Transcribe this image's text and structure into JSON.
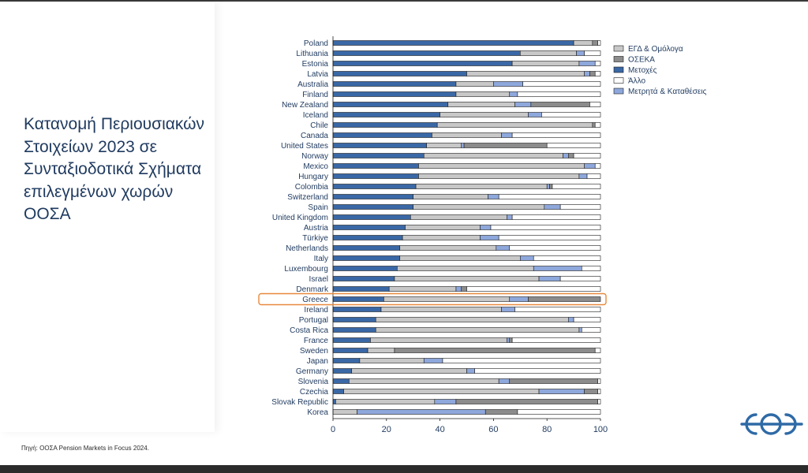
{
  "slide": {
    "title": "Κατανομή Περιουσιακών Στοιχείων 2023 σε Συνταξιοδοτικά Σχήματα επιλεγμένων χωρών ΟΟΣΑ",
    "source": "Πηγή: ΟΟΣΑ Pension Markets in Focus 2024."
  },
  "logo": {
    "icon": "eoe-logo",
    "color": "#2e6aa6"
  },
  "highlight": {
    "category": "Greece",
    "color": "#e8893c"
  },
  "chart_data": {
    "type": "bar",
    "orientation": "horizontal",
    "stacked": true,
    "xlim": [
      0,
      100
    ],
    "xticks": [
      0,
      20,
      40,
      60,
      80,
      100
    ],
    "legend_position": "right",
    "categories": [
      "Poland",
      "Lithuania",
      "Estonia",
      "Latvia",
      "Australia",
      "Finland",
      "New Zealand",
      "Iceland",
      "Chile",
      "Canada",
      "United States",
      "Norway",
      "Mexico",
      "Hungary",
      "Colombia",
      "Switzerland",
      "Spain",
      "United Kingdom",
      "Austria",
      "Türkiye",
      "Netherlands",
      "Italy",
      "Luxembourg",
      "Israel",
      "Denmark",
      "Greece",
      "Ireland",
      "Portugal",
      "Costa Rica",
      "France",
      "Sweden",
      "Japan",
      "Germany",
      "Slovenia",
      "Czechia",
      "Slovak Republic",
      "Korea"
    ],
    "series": [
      {
        "name": "Μετοχές",
        "color": "#3a68a6",
        "values": [
          90,
          70,
          67,
          50,
          46,
          46,
          43,
          40,
          39,
          37,
          35,
          34,
          32,
          32,
          31,
          30,
          30,
          29,
          27,
          26,
          25,
          25,
          24,
          23,
          21,
          19,
          18,
          16,
          16,
          14,
          13,
          10,
          7,
          6,
          4,
          1,
          0
        ]
      },
      {
        "name": "ΕΓΔ & Ομόλογα",
        "color": "#c8c8c8",
        "values": [
          7,
          21,
          25,
          44,
          14,
          20,
          25,
          33,
          58,
          26,
          13,
          52,
          62,
          60,
          49,
          28,
          49,
          36,
          28,
          29,
          36,
          45,
          51,
          54,
          25,
          47,
          45,
          72,
          76,
          51,
          10,
          24,
          43,
          56,
          73,
          37,
          9
        ]
      },
      {
        "name": "Μετρητά & Καταθέσεις",
        "color": "#8ea8dc",
        "values": [
          0,
          3,
          6,
          2,
          11,
          3,
          6,
          5,
          0,
          4,
          1,
          2,
          4,
          3,
          1,
          4,
          6,
          2,
          4,
          7,
          5,
          5,
          18,
          8,
          2,
          7,
          5,
          2,
          1,
          1,
          0,
          7,
          3,
          4,
          17,
          8,
          48
        ]
      },
      {
        "name": "ΟΣΕΚΑ",
        "color": "#8c8c8c",
        "values": [
          2,
          0,
          0,
          2,
          0,
          0,
          22,
          0,
          1,
          0,
          31,
          2,
          0,
          0,
          1,
          0,
          0,
          0,
          0,
          0,
          0,
          0,
          0,
          0,
          2,
          27,
          0,
          0,
          0,
          1,
          75,
          0,
          0,
          33,
          5,
          53,
          12
        ]
      },
      {
        "name": "Άλλο",
        "color": "#ffffff",
        "values": [
          1,
          6,
          2,
          2,
          29,
          31,
          4,
          22,
          2,
          33,
          20,
          10,
          2,
          5,
          18,
          38,
          15,
          33,
          41,
          38,
          34,
          25,
          7,
          15,
          50,
          0,
          32,
          10,
          7,
          33,
          2,
          59,
          47,
          1,
          1,
          1,
          31
        ]
      }
    ],
    "legend": [
      {
        "name": "ΕΓΔ & Ομόλογα",
        "color": "#c8c8c8"
      },
      {
        "name": "ΟΣΕΚΑ",
        "color": "#8c8c8c"
      },
      {
        "name": "Μετοχές",
        "color": "#3a68a6"
      },
      {
        "name": "Άλλο",
        "color": "#ffffff"
      },
      {
        "name": "Μετρητά & Καταθέσεις",
        "color": "#8ea8dc"
      }
    ]
  }
}
